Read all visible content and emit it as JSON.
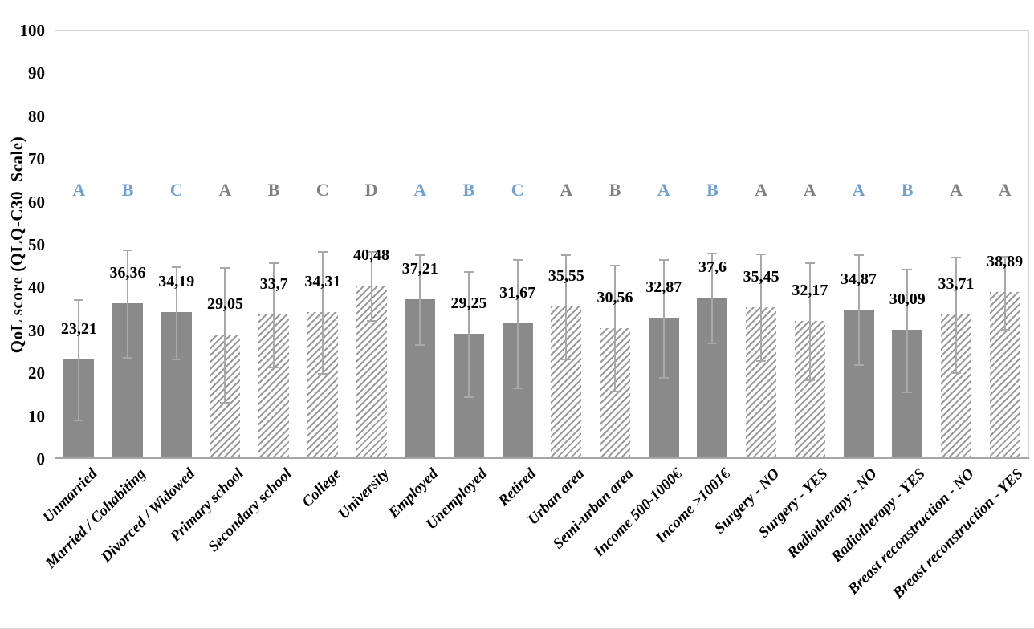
{
  "chart_data": {
    "type": "bar",
    "title": "",
    "ylabel": "QoL score (QLQ-C30  Scale)",
    "xlabel": "",
    "ylim": [
      0,
      100
    ],
    "yticks": [
      100,
      90,
      80,
      70,
      60,
      50,
      40,
      30,
      20,
      10,
      0
    ],
    "grid": "off",
    "legend": "none",
    "decimal_separator": ",",
    "categories": [
      "Unmarried",
      "Married / Cohabiting",
      "Divorced / Widowed",
      "Primary school",
      "Secondary school",
      "College",
      "University",
      "Employed",
      "Unemployed",
      "Retired",
      "Urban area",
      "Semi-urban area",
      "Income 500-1000€",
      "Income >1001€",
      "Surgery - NO",
      "Surgery - YES",
      "Radiotherapy - NO",
      "Radiotherapy - YES",
      "Breast reconstruction - NO",
      "Breast reconstruction - YES"
    ],
    "values": [
      23.21,
      36.36,
      34.19,
      29.05,
      33.7,
      34.31,
      40.48,
      37.21,
      29.25,
      31.67,
      35.55,
      30.56,
      32.87,
      37.6,
      35.45,
      32.17,
      34.87,
      30.09,
      33.71,
      38.89
    ],
    "value_labels": [
      "23,21",
      "36,36",
      "34,19",
      "29,05",
      "33,7",
      "34,31",
      "40,48",
      "37,21",
      "29,25",
      "31,67",
      "35,55",
      "30,56",
      "32,87",
      "37,6",
      "35,45",
      "32,17",
      "34,87",
      "30,09",
      "33,71",
      "38,89"
    ],
    "error_sd": [
      14.1,
      12.5,
      10.8,
      15.7,
      12.2,
      14.2,
      8.0,
      10.5,
      14.6,
      15.0,
      12.2,
      14.7,
      13.7,
      10.5,
      12.4,
      13.7,
      12.8,
      14.3,
      13.5,
      8.5
    ],
    "bar_styles": [
      "solid",
      "solid",
      "solid",
      "hatched",
      "hatched",
      "hatched",
      "hatched",
      "solid",
      "solid",
      "solid",
      "hatched",
      "hatched",
      "solid",
      "solid",
      "hatched",
      "hatched",
      "solid",
      "solid",
      "hatched",
      "hatched"
    ],
    "significance_letters": [
      "A",
      "B",
      "C",
      "A",
      "B",
      "C",
      "D",
      "A",
      "B",
      "C",
      "A",
      "B",
      "A",
      "B",
      "A",
      "A",
      "A",
      "B",
      "A",
      "A"
    ],
    "letter_colors": [
      "blue",
      "blue",
      "blue",
      "gray",
      "gray",
      "gray",
      "gray",
      "blue",
      "blue",
      "blue",
      "gray",
      "gray",
      "blue",
      "blue",
      "gray",
      "gray",
      "blue",
      "blue",
      "gray",
      "gray"
    ],
    "colors": {
      "solid_bar_fill": "#8a8a8a",
      "hatch_stripe": "#9a9a9a",
      "hatch_background": "#ffffff",
      "error_bar": "#a8a8a8",
      "axis_line": "#a6a6a6",
      "plot_border": "#d4d4d4",
      "letter_blue": "#6f9fd4",
      "letter_gray": "#808080",
      "text": "#000000"
    }
  }
}
